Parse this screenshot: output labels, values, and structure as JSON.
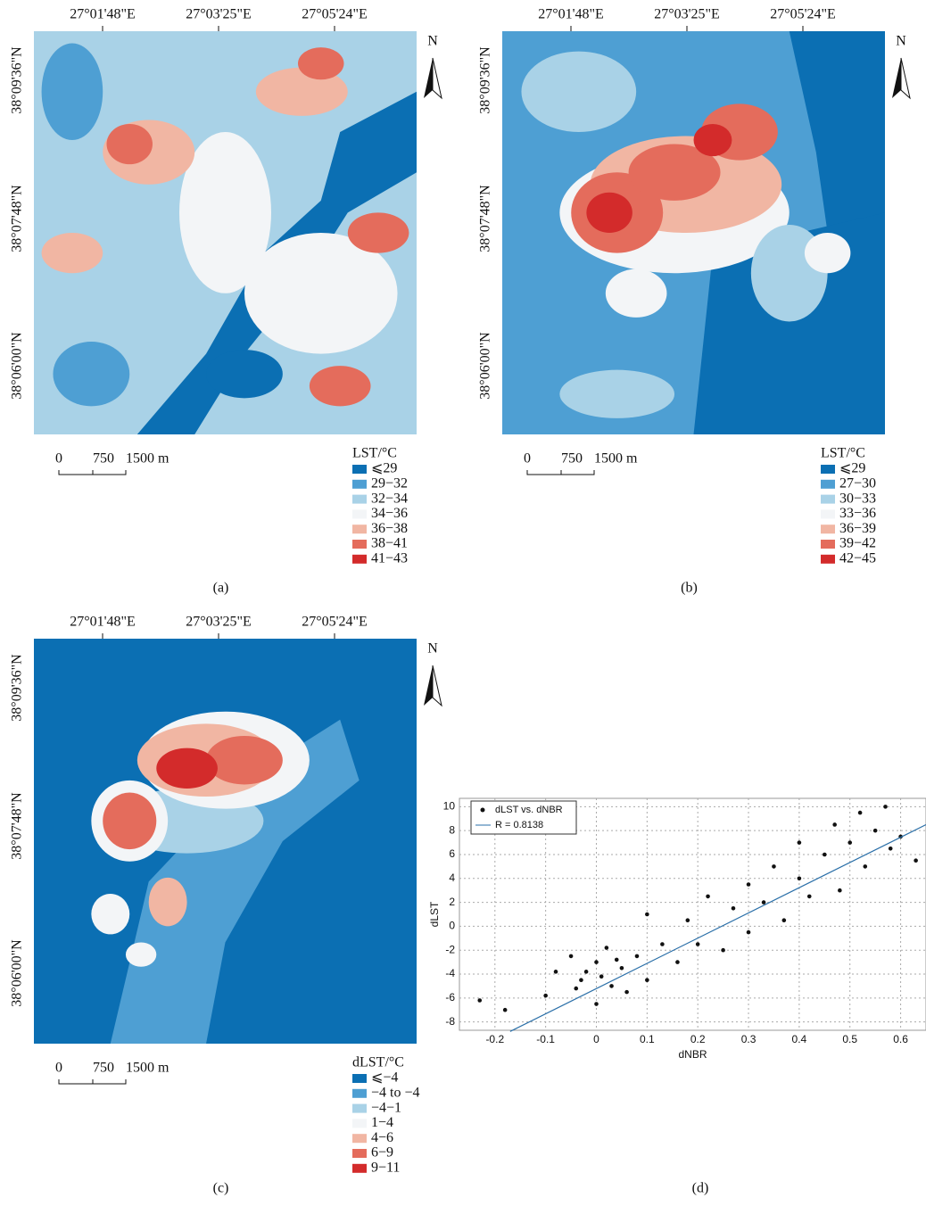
{
  "panels": [
    {
      "caption": "(a)",
      "top_labels": [
        "27°01'48\"E",
        "27°03'25\"E",
        "27°05'24\"E"
      ],
      "left_labels": [
        "38°09'36\"N",
        "38°07'48\"N",
        "38°06'00\"N"
      ],
      "north": "N",
      "scale_labels": [
        "0",
        "750",
        "1500 m"
      ],
      "legend_title": "LST/°C",
      "legend": [
        {
          "label": "⩽29",
          "color": "#0b6fb3"
        },
        {
          "label": "29−32",
          "color": "#4e9fd3"
        },
        {
          "label": "32−34",
          "color": "#a9d2e7"
        },
        {
          "label": "34−36",
          "color": "#f3f5f7"
        },
        {
          "label": "36−38",
          "color": "#f1b6a3"
        },
        {
          "label": "38−41",
          "color": "#e46c5c"
        },
        {
          "label": "41−43",
          "color": "#d32b2b"
        }
      ]
    },
    {
      "caption": "(b)",
      "top_labels": [
        "27°01'48\"E",
        "27°03'25\"E",
        "27°05'24\"E"
      ],
      "left_labels": [
        "38°09'36\"N",
        "38°07'48\"N",
        "38°06'00\"N"
      ],
      "north": "N",
      "scale_labels": [
        "0",
        "750",
        "1500 m"
      ],
      "legend_title": "LST/°C",
      "legend": [
        {
          "label": "⩽29",
          "color": "#0b6fb3"
        },
        {
          "label": "27−30",
          "color": "#4e9fd3"
        },
        {
          "label": "30−33",
          "color": "#a9d2e7"
        },
        {
          "label": "33−36",
          "color": "#f3f5f7"
        },
        {
          "label": "36−39",
          "color": "#f1b6a3"
        },
        {
          "label": "39−42",
          "color": "#e46c5c"
        },
        {
          "label": "42−45",
          "color": "#d32b2b"
        }
      ]
    },
    {
      "caption": "(c)",
      "top_labels": [
        "27°01'48\"E",
        "27°03'25\"E",
        "27°05'24\"E"
      ],
      "left_labels": [
        "38°09'36\"N",
        "38°07'48\"N",
        "38°06'00\"N"
      ],
      "north": "N",
      "scale_labels": [
        "0",
        "750",
        "1500 m"
      ],
      "legend_title": "dLST/°C",
      "legend": [
        {
          "label": "⩽−4",
          "color": "#0b6fb3"
        },
        {
          "label": "−4 to −4",
          "color": "#4e9fd3"
        },
        {
          "label": "−4−1",
          "color": "#a9d2e7"
        },
        {
          "label": "1−4",
          "color": "#f3f5f7"
        },
        {
          "label": "4−6",
          "color": "#f1b6a3"
        },
        {
          "label": "6−9",
          "color": "#e46c5c"
        },
        {
          "label": "9−11",
          "color": "#d32b2b"
        }
      ]
    }
  ],
  "chart_data": {
    "type": "scatter",
    "caption": "(d)",
    "x_label": "dNBR",
    "y_label": "dLST",
    "xlim": [
      -0.27,
      0.65
    ],
    "ylim": [
      -8.7,
      10.7
    ],
    "xticks": [
      -0.2,
      -0.1,
      0,
      0.1,
      0.2,
      0.3,
      0.4,
      0.5,
      0.6
    ],
    "yticks": [
      -8,
      -6,
      -4,
      -2,
      0,
      2,
      4,
      6,
      8,
      10
    ],
    "grid": true,
    "legend": "upper left",
    "series": [
      {
        "name": "dLST vs. dNBR",
        "color": "#111111",
        "mode": "points",
        "x": [
          -0.23,
          -0.18,
          -0.1,
          -0.08,
          -0.05,
          -0.03,
          0,
          0,
          0.02,
          0.03,
          0.05,
          0.08,
          0.1,
          0.1,
          0.13,
          0.16,
          0.18,
          0.2,
          0.22,
          0.25,
          0.27,
          0.3,
          0.3,
          0.33,
          0.35,
          0.37,
          0.4,
          0.4,
          0.42,
          0.45,
          0.47,
          0.48,
          0.5,
          0.52,
          0.53,
          0.55,
          0.57,
          0.58,
          0.6,
          0.63,
          -0.02,
          0.01,
          0.04,
          -0.04,
          0.06
        ],
        "values": [
          -6.2,
          -7.0,
          -5.8,
          -3.8,
          -2.5,
          -4.5,
          -3,
          -6.5,
          -1.8,
          -5,
          -3.5,
          -2.5,
          1,
          -4.5,
          -1.5,
          -3,
          0.5,
          -1.5,
          2.5,
          -2,
          1.5,
          -0.5,
          3.5,
          2,
          5,
          0.5,
          4,
          7,
          2.5,
          6,
          8.5,
          3,
          7,
          9.5,
          5,
          8,
          10,
          6.5,
          7.5,
          5.5,
          -3.8,
          -4.2,
          -2.8,
          -5.2,
          -5.5
        ]
      },
      {
        "name": "R = 0.8138",
        "color": "#2a6fa8",
        "mode": "line",
        "x": [
          -0.17,
          0.65
        ],
        "values": [
          -8.8,
          8.5
        ]
      }
    ]
  }
}
